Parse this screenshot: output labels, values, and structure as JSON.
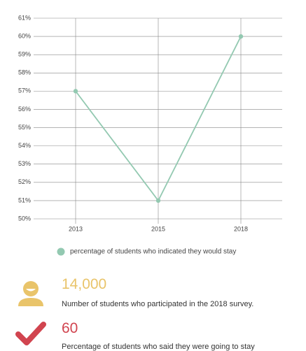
{
  "chart_data": {
    "type": "line",
    "categories": [
      "2013",
      "2015",
      "2018"
    ],
    "series": [
      {
        "name": "percentage of students who indicated they would stay",
        "color": "#93c9b1",
        "values": [
          57,
          51,
          60
        ]
      }
    ],
    "ylim": [
      50,
      61
    ],
    "yticks": [
      {
        "value": 50,
        "label": "50%"
      },
      {
        "value": 51,
        "label": "51%"
      },
      {
        "value": 52,
        "label": "52%"
      },
      {
        "value": 53,
        "label": "53%"
      },
      {
        "value": 54,
        "label": "54%"
      },
      {
        "value": 55,
        "label": "55%"
      },
      {
        "value": 56,
        "label": "56%"
      },
      {
        "value": 57,
        "label": "57%"
      },
      {
        "value": 58,
        "label": "58%"
      },
      {
        "value": 59,
        "label": "59%"
      },
      {
        "value": 60,
        "label": "60%"
      },
      {
        "value": 61,
        "label": "61%"
      }
    ],
    "grid": true,
    "legend": "bottom"
  },
  "stats": [
    {
      "value": "14,000",
      "label": "Number of students who participated in the 2018 survey.",
      "color": "#e9c46a"
    },
    {
      "value": "60",
      "label": "Percentage of students who said they were going to stay",
      "color": "#d1444f"
    }
  ]
}
